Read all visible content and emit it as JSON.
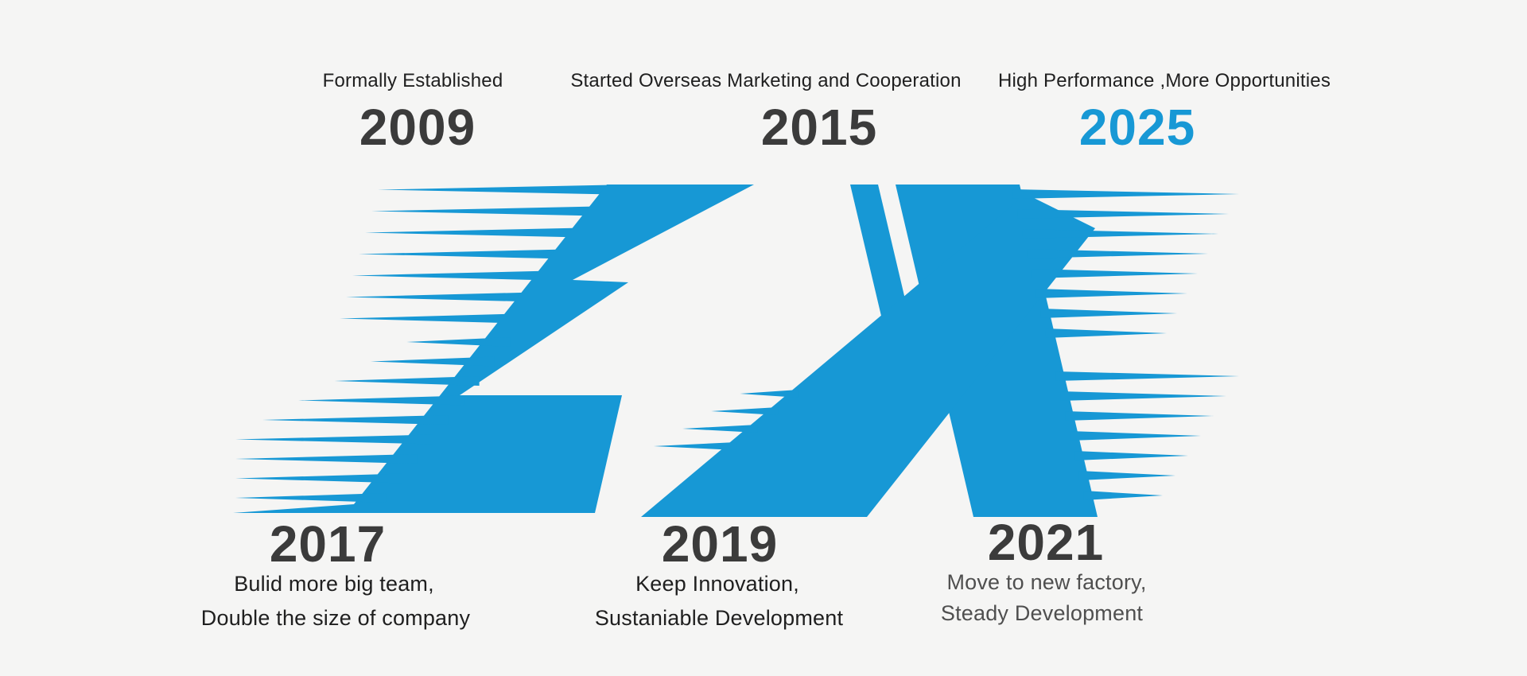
{
  "background_color": "#f5f5f4",
  "colors": {
    "accent_blue": "#1798d5",
    "text_dark": "#3b3b3b",
    "text_black": "#1f1f1f",
    "text_gray": "#4f4f4f"
  },
  "logo": {
    "name": "ZX logo with speed lines and white arrow",
    "color": "#1798d5"
  },
  "milestones_top": [
    {
      "label": "Formally Established",
      "year": "2009"
    },
    {
      "label": "Started Overseas Marketing and Cooperation",
      "year": "2015"
    },
    {
      "label": "High Performance ,More Opportunities",
      "year": "2025"
    }
  ],
  "milestones_bottom": [
    {
      "year": "2017",
      "line1": "Bulid more big team,",
      "line2": "Double the size of company"
    },
    {
      "year": "2019",
      "line1": "Keep Innovation,",
      "line2": "Sustaniable Development"
    },
    {
      "year": "2021",
      "line1": "Move to new factory,",
      "line2": "Steady Development"
    }
  ]
}
